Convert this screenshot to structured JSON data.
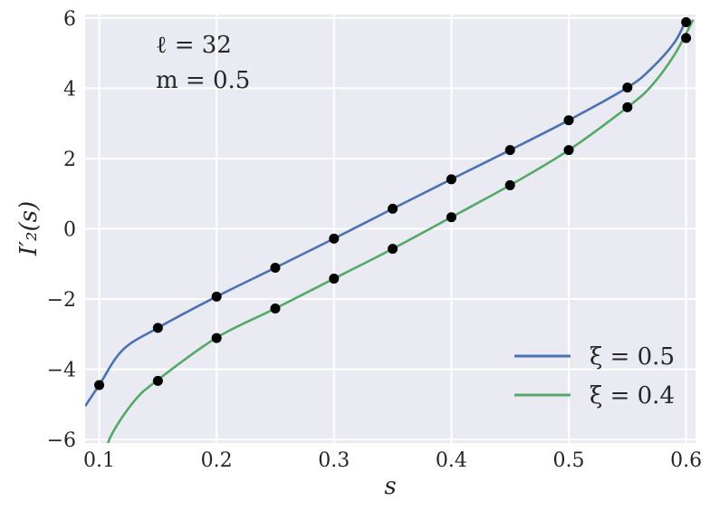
{
  "chart_data": {
    "type": "line",
    "xlabel": "s",
    "ylabel": "I′₂(s)",
    "xlim": [
      0.088,
      0.608
    ],
    "ylim": [
      -6.1,
      6.1
    ],
    "xticks": [
      0.1,
      0.2,
      0.3,
      0.4,
      0.5,
      0.6
    ],
    "xtick_labels": [
      "0.1",
      "0.2",
      "0.3",
      "0.4",
      "0.5",
      "0.6"
    ],
    "yticks": [
      -6,
      -4,
      -2,
      0,
      2,
      4,
      6
    ],
    "ytick_labels": [
      "−6",
      "−4",
      "−2",
      "0",
      "2",
      "4",
      "6"
    ],
    "grid": true,
    "background": "#eaeaf2",
    "annotations": [
      "ℓ = 32",
      "m = 0.5"
    ],
    "legend_position": "bottom-right",
    "series": [
      {
        "name": "ξ = 0.5",
        "color": "#4c72b0",
        "curve": {
          "x": [
            0.088,
            0.1,
            0.12,
            0.15,
            0.2,
            0.25,
            0.3,
            0.35,
            0.4,
            0.45,
            0.5,
            0.55,
            0.57,
            0.59,
            0.6
          ],
          "y": [
            -5.05,
            -4.45,
            -3.45,
            -2.82,
            -1.93,
            -1.11,
            -0.28,
            0.57,
            1.41,
            2.24,
            3.09,
            4.02,
            4.55,
            5.3,
            5.95
          ]
        },
        "points": {
          "x": [
            0.1,
            0.15,
            0.2,
            0.25,
            0.3,
            0.35,
            0.4,
            0.45,
            0.5,
            0.55,
            0.6
          ],
          "y": [
            -4.45,
            -2.82,
            -1.93,
            -1.11,
            -0.28,
            0.57,
            1.41,
            2.24,
            3.09,
            4.02,
            5.88
          ]
        }
      },
      {
        "name": "ξ = 0.4",
        "color": "#55a868",
        "curve": {
          "x": [
            0.1,
            0.11,
            0.13,
            0.15,
            0.2,
            0.25,
            0.3,
            0.35,
            0.4,
            0.45,
            0.5,
            0.55,
            0.57,
            0.59,
            0.606
          ],
          "y": [
            -6.9,
            -5.9,
            -4.9,
            -4.3,
            -3.1,
            -2.27,
            -1.42,
            -0.57,
            0.33,
            1.24,
            2.24,
            3.46,
            4.05,
            4.95,
            5.95
          ]
        },
        "points": {
          "x": [
            0.15,
            0.2,
            0.25,
            0.3,
            0.35,
            0.4,
            0.45,
            0.5,
            0.55,
            0.6
          ],
          "y": [
            -4.33,
            -3.11,
            -2.27,
            -1.42,
            -0.57,
            0.33,
            1.24,
            2.24,
            3.46,
            5.43
          ]
        }
      }
    ]
  }
}
